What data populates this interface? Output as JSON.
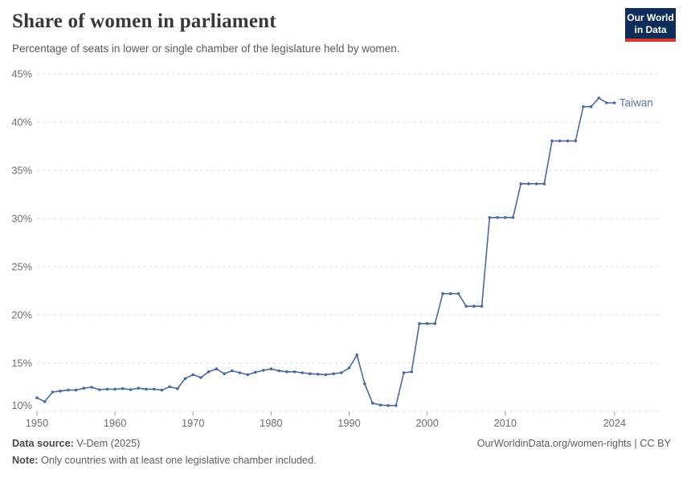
{
  "header": {
    "title": "Share of women in parliament",
    "subtitle": "Percentage of seats in lower or single chamber of the legislature held by women.",
    "logo": {
      "line1": "Our World",
      "line2": "in Data"
    }
  },
  "footer": {
    "source_label": "Data source:",
    "source_value": " V-Dem (2025)",
    "cite": "OurWorldinData.org/women-rights | CC BY",
    "note_label": "Note:",
    "note_value": " Only countries with at least one legislative chamber included."
  },
  "colors": {
    "line": "#4c6a9c",
    "series_label": "#5878a8",
    "grid": "#dcdcdc",
    "axis_text": "#6e6e6e",
    "tick_mark": "#a0a0a0",
    "logo_bg": "#102d59",
    "logo_red": "#d93a2b"
  },
  "chart_data": {
    "type": "line",
    "title": "Share of women in parliament",
    "xlabel": "",
    "ylabel": "",
    "xlim": [
      1950,
      2030
    ],
    "ylim": [
      10,
      45
    ],
    "x_ticks": [
      1950,
      1960,
      1970,
      1980,
      1990,
      2000,
      2010,
      2024
    ],
    "y_ticks": [
      10,
      15,
      20,
      25,
      30,
      35,
      40,
      45
    ],
    "y_tick_suffix": "%",
    "grid": "dashed-horizontal",
    "legend_position": "end-of-line-label",
    "series": [
      {
        "name": "Taiwan",
        "x": [
          1950,
          1951,
          1952,
          1953,
          1954,
          1955,
          1956,
          1957,
          1958,
          1959,
          1960,
          1961,
          1962,
          1963,
          1964,
          1965,
          1966,
          1967,
          1968,
          1969,
          1970,
          1971,
          1972,
          1973,
          1974,
          1975,
          1976,
          1977,
          1978,
          1979,
          1980,
          1981,
          1982,
          1983,
          1984,
          1985,
          1986,
          1987,
          1988,
          1989,
          1990,
          1991,
          1992,
          1993,
          1994,
          1995,
          1996,
          1997,
          1998,
          1999,
          2000,
          2001,
          2002,
          2003,
          2004,
          2005,
          2006,
          2007,
          2008,
          2009,
          2010,
          2011,
          2012,
          2013,
          2014,
          2015,
          2016,
          2017,
          2018,
          2019,
          2020,
          2021,
          2022,
          2023,
          2024
        ],
        "values": [
          11.4,
          11.0,
          12.0,
          12.1,
          12.2,
          12.2,
          12.4,
          12.5,
          12.25,
          12.3,
          12.3,
          12.35,
          12.25,
          12.4,
          12.3,
          12.3,
          12.2,
          12.55,
          12.35,
          13.4,
          13.8,
          13.5,
          14.1,
          14.4,
          13.9,
          14.2,
          14.0,
          13.8,
          14.05,
          14.25,
          14.4,
          14.2,
          14.1,
          14.1,
          14.0,
          13.9,
          13.85,
          13.8,
          13.9,
          14.0,
          14.5,
          15.85,
          12.85,
          10.85,
          10.65,
          10.6,
          10.6,
          14.0,
          14.1,
          19.1,
          19.1,
          19.1,
          22.2,
          22.2,
          22.2,
          20.9,
          20.9,
          20.9,
          30.1,
          30.1,
          30.1,
          30.1,
          33.6,
          33.6,
          33.6,
          33.6,
          38.05,
          38.05,
          38.05,
          38.05,
          41.6,
          41.6,
          42.5,
          42.0,
          42.0
        ]
      }
    ]
  }
}
